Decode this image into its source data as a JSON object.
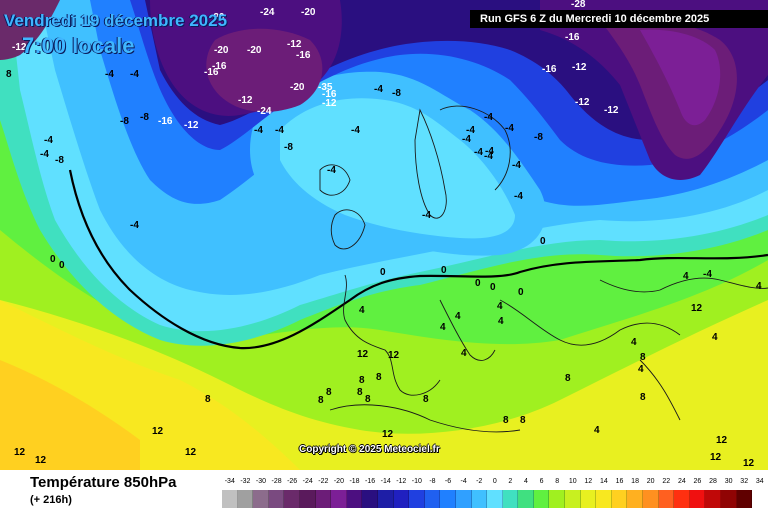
{
  "header": {
    "date": "Vendredi 19 décembre 2025",
    "time": "7:00 locale",
    "run": "Run GFS 6 Z du Mercredi 10 décembre 2025"
  },
  "copyright": "Copyright © 2025 Meteociel.fr",
  "footer": {
    "variable": "Température 850hPa",
    "lead": "(+ 216h)"
  },
  "legend": {
    "labels": [
      "-34",
      "-32",
      "-30",
      "-28",
      "-26",
      "-24",
      "-22",
      "-20",
      "-18",
      "-16",
      "-14",
      "-12",
      "-10",
      "-8",
      "-6",
      "-4",
      "-2",
      "0",
      "2",
      "4",
      "6",
      "8",
      "10",
      "12",
      "14",
      "16",
      "18",
      "20",
      "22",
      "24",
      "26",
      "28",
      "30",
      "32",
      "34"
    ],
    "colors": [
      "#c0c0c0",
      "#a0a0a0",
      "#8c6c8c",
      "#7a4a80",
      "#6a2a6a",
      "#5a1a5c",
      "#6c1d78",
      "#7c1f96",
      "#4c0f80",
      "#2a0f80",
      "#1e1ea6",
      "#2020c0",
      "#2040e0",
      "#2060f0",
      "#2080ff",
      "#30a0ff",
      "#40c0ff",
      "#60e0ff",
      "#40e0c0",
      "#40e080",
      "#60f040",
      "#a0f020",
      "#c8f020",
      "#e8f020",
      "#f8e820",
      "#ffd020",
      "#ffb020",
      "#ff9020",
      "#ff6020",
      "#ff3010",
      "#f01010",
      "#c00808",
      "#900404",
      "#600000"
    ]
  },
  "map": {
    "labels": [
      {
        "t": "-4",
        "c": "#000"
      },
      {
        "t": "-4",
        "c": "#000"
      },
      {
        "t": "-8",
        "c": "#000"
      },
      {
        "t": "-8",
        "c": "#000"
      },
      {
        "t": "-16",
        "c": "#fff"
      },
      {
        "t": "-12",
        "c": "#fff"
      },
      {
        "t": "-16",
        "c": "#fff"
      },
      {
        "t": "-20",
        "c": "#fff"
      },
      {
        "t": "-20",
        "c": "#fff"
      },
      {
        "t": "-20",
        "c": "#fff"
      },
      {
        "t": "-12",
        "c": "#fff"
      },
      {
        "t": "-24",
        "c": "#fff"
      },
      {
        "t": "-16",
        "c": "#fff"
      },
      {
        "t": "-20",
        "c": "#fff"
      },
      {
        "t": "-12",
        "c": "#fff"
      },
      {
        "t": "-24",
        "c": "#fff"
      },
      {
        "t": "-20",
        "c": "#fff"
      },
      {
        "t": "-35",
        "c": "#fff"
      },
      {
        "t": "-12",
        "c": "#fff"
      },
      {
        "t": "-16",
        "c": "#fff"
      },
      {
        "t": "-4",
        "c": "#000"
      },
      {
        "t": "-8",
        "c": "#000"
      },
      {
        "t": "-4",
        "c": "#000"
      },
      {
        "t": "-4",
        "c": "#000"
      },
      {
        "t": "-4",
        "c": "#000"
      },
      {
        "t": "-4",
        "c": "#000"
      },
      {
        "t": "-4",
        "c": "#000"
      },
      {
        "t": "-8",
        "c": "#000"
      },
      {
        "t": "-4",
        "c": "#000"
      },
      {
        "t": "-4",
        "c": "#000"
      },
      {
        "t": "-4",
        "c": "#000"
      },
      {
        "t": "-4",
        "c": "#000"
      },
      {
        "t": "-8",
        "c": "#000"
      },
      {
        "t": "-4",
        "c": "#000"
      },
      {
        "t": "-4",
        "c": "#000"
      },
      {
        "t": "-4",
        "c": "#000"
      },
      {
        "t": "0",
        "c": "#000"
      },
      {
        "t": "0",
        "c": "#000"
      },
      {
        "t": "0",
        "c": "#000"
      },
      {
        "t": "0",
        "c": "#000"
      },
      {
        "t": "0",
        "c": "#000"
      },
      {
        "t": "0",
        "c": "#000"
      },
      {
        "t": "0",
        "c": "#000"
      },
      {
        "t": "0",
        "c": "#000"
      },
      {
        "t": "-16",
        "c": "#fff"
      },
      {
        "t": "-16",
        "c": "#fff"
      },
      {
        "t": "-12",
        "c": "#fff"
      },
      {
        "t": "-12",
        "c": "#fff"
      },
      {
        "t": "-12",
        "c": "#fff"
      },
      {
        "t": "-16",
        "c": "#fff"
      },
      {
        "t": "-28",
        "c": "#fff"
      },
      {
        "t": "-12",
        "c": "#fff"
      },
      {
        "t": "-8",
        "c": "#000"
      },
      {
        "t": "-4",
        "c": "#000"
      },
      {
        "t": "-4",
        "c": "#000"
      },
      {
        "t": "-4",
        "c": "#000"
      },
      {
        "t": "8",
        "c": "#000"
      },
      {
        "t": "4",
        "c": "#000"
      },
      {
        "t": "4",
        "c": "#000"
      },
      {
        "t": "4",
        "c": "#000"
      },
      {
        "t": "4",
        "c": "#000"
      },
      {
        "t": "4",
        "c": "#000"
      },
      {
        "t": "4",
        "c": "#000"
      },
      {
        "t": "4",
        "c": "#000"
      },
      {
        "t": "4",
        "c": "#000"
      },
      {
        "t": "4",
        "c": "#000"
      },
      {
        "t": "8",
        "c": "#000"
      },
      {
        "t": "8",
        "c": "#000"
      },
      {
        "t": "12",
        "c": "#000"
      },
      {
        "t": "8",
        "c": "#000"
      },
      {
        "t": "8",
        "c": "#000"
      },
      {
        "t": "8",
        "c": "#000"
      },
      {
        "t": "8",
        "c": "#000"
      },
      {
        "t": "8",
        "c": "#000"
      },
      {
        "t": "8",
        "c": "#000"
      },
      {
        "t": "8",
        "c": "#000"
      },
      {
        "t": "12",
        "c": "#000"
      },
      {
        "t": "12",
        "c": "#000"
      },
      {
        "t": "12",
        "c": "#000"
      },
      {
        "t": "12",
        "c": "#000"
      },
      {
        "t": "12",
        "c": "#000"
      },
      {
        "t": "12",
        "c": "#000"
      },
      {
        "t": "12",
        "c": "#000"
      },
      {
        "t": "8",
        "c": "#000"
      },
      {
        "t": "8",
        "c": "#000"
      },
      {
        "t": "8",
        "c": "#000"
      },
      {
        "t": "8",
        "c": "#000"
      },
      {
        "t": "4",
        "c": "#000"
      },
      {
        "t": "4",
        "c": "#000"
      },
      {
        "t": "4",
        "c": "#000"
      },
      {
        "t": "-4",
        "c": "#000"
      },
      {
        "t": "-4",
        "c": "#000"
      },
      {
        "t": "-4",
        "c": "#000"
      },
      {
        "t": "12",
        "c": "#000"
      },
      {
        "t": "12",
        "c": "#000"
      },
      {
        "t": "12",
        "c": "#000"
      }
    ]
  }
}
